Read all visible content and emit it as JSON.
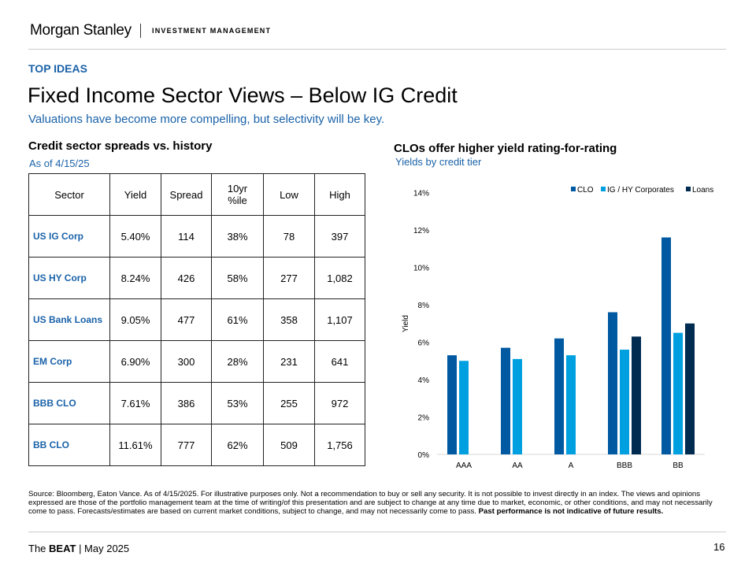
{
  "header": {
    "brand": "Morgan Stanley",
    "division": "INVESTMENT MANAGEMENT"
  },
  "eyebrow": "TOP IDEAS",
  "title": "Fixed Income Sector Views – Below IG Credit",
  "subtitle": "Valuations have become more compelling, but selectivity will be key.",
  "table": {
    "title": "Credit sector spreads vs. history",
    "subtitle": "As of 4/15/25",
    "headers": [
      "Sector",
      "Yield",
      "Spread",
      "10yr %ile",
      "Low",
      "High"
    ],
    "rows": [
      [
        "US IG Corp",
        "5.40%",
        "114",
        "38%",
        "78",
        "397"
      ],
      [
        "US HY Corp",
        "8.24%",
        "426",
        "58%",
        "277",
        "1,082"
      ],
      [
        "US Bank Loans",
        "9.05%",
        "477",
        "61%",
        "358",
        "1,107"
      ],
      [
        "EM Corp",
        "6.90%",
        "300",
        "28%",
        "231",
        "641"
      ],
      [
        "BBB CLO",
        "7.61%",
        "386",
        "53%",
        "255",
        "972"
      ],
      [
        "BB CLO",
        "11.61%",
        "777",
        "62%",
        "509",
        "1,756"
      ]
    ]
  },
  "chart_data": {
    "type": "bar",
    "title": "CLOs offer higher yield rating-for-rating",
    "subtitle": "Yields by credit tier",
    "ylabel": "Yield",
    "xlabel": "",
    "ylim": [
      0,
      14
    ],
    "yticks": [
      "0%",
      "2%",
      "4%",
      "6%",
      "8%",
      "10%",
      "12%",
      "14%"
    ],
    "categories": [
      "AAA",
      "AA",
      "A",
      "BBB",
      "BB"
    ],
    "legend_position": "top-right",
    "grid": false,
    "series": [
      {
        "name": "CLO",
        "color": "#0059a1",
        "values": [
          5.3,
          5.7,
          6.2,
          7.6,
          11.6
        ]
      },
      {
        "name": "IG / HY Corporates",
        "color": "#00a0e0",
        "values": [
          5.0,
          5.1,
          5.3,
          5.6,
          6.5
        ]
      },
      {
        "name": "Loans",
        "color": "#002b51",
        "values": [
          null,
          null,
          null,
          6.3,
          7.0
        ]
      }
    ]
  },
  "footer": {
    "source": "Source: Bloomberg, Eaton Vance. As of 4/15/2025. For illustrative purposes only. Not a recommendation to buy or sell any security. It is not possible to invest directly in an index. The views and opinions expressed are those of the portfolio management team at the time of writing/of this presentation and are subject to change at any time due to market, economic, or other conditions, and may not necessarily come to pass.  Forecasts/estimates are based on current market conditions, subject to change, and may not necessarily come to pass. ",
    "bold": "Past performance is not indicative of future results.",
    "beat_prefix": "The ",
    "beat_bold": "BEAT",
    "beat_suffix": " | May 2025",
    "page": "16"
  }
}
